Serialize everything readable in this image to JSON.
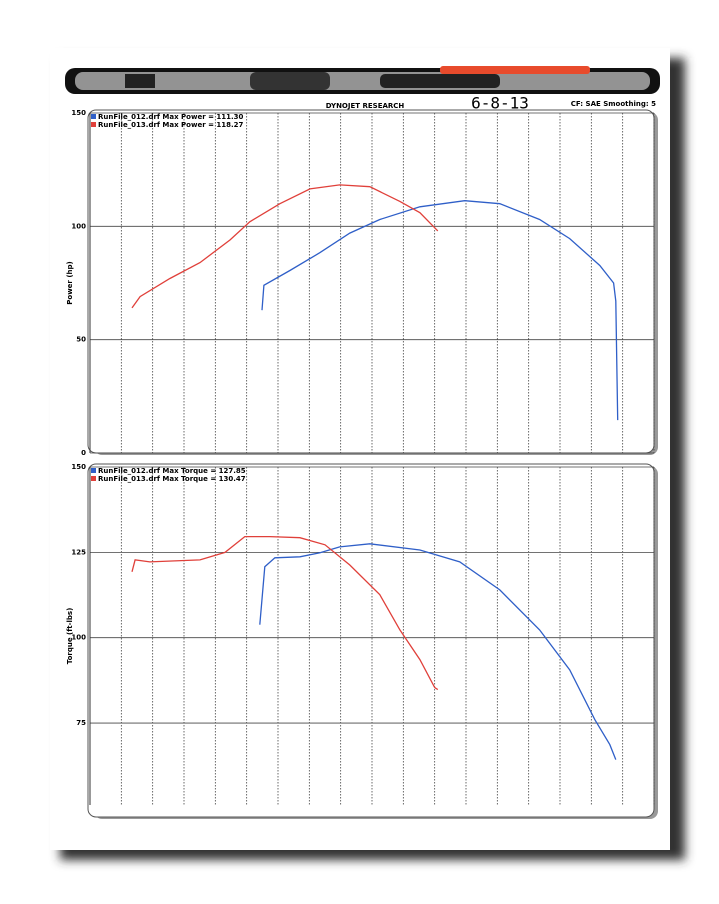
{
  "header": {
    "company": "DYNOJET RESEARCH",
    "date": "6-8-13",
    "settings": "CF: SAE  Smoothing: 5"
  },
  "chart_data": [
    {
      "type": "line",
      "y_label": "Power (hp)",
      "xlim": [
        0,
        18
      ],
      "ylim": [
        0,
        150
      ],
      "yticks": [
        0,
        50,
        100,
        150
      ],
      "grid": true,
      "series": [
        {
          "name": "RunFile_012.drf Max Power = 111.30",
          "color": "#2f5fc8",
          "x": [
            5.49,
            5.55,
            6.38,
            7.34,
            8.29,
            9.25,
            10.53,
            11.96,
            13.08,
            14.35,
            15.31,
            16.27,
            16.71,
            16.78,
            16.84
          ],
          "values": [
            63,
            74,
            80.5,
            88.4,
            97,
            103,
            108.6,
            111.3,
            110,
            103,
            94.6,
            82.7,
            75,
            67,
            14.5
          ]
        },
        {
          "name": "RunFile_013.drf Max Power = 118.27",
          "color": "#e0403a",
          "x": [
            1.34,
            1.6,
            2.55,
            3.51,
            4.47,
            5.1,
            6.06,
            7.02,
            7.97,
            8.93,
            9.89,
            10.53,
            11.1
          ],
          "values": [
            64,
            69,
            77,
            84,
            94,
            102,
            110,
            116.5,
            118.3,
            117.5,
            111,
            106,
            98
          ]
        }
      ]
    },
    {
      "type": "line",
      "y_label": "Torque (ft-lbs)",
      "xlim": [
        0,
        18
      ],
      "ylim": [
        51,
        150
      ],
      "yticks": [
        75,
        100,
        125,
        150
      ],
      "grid": true,
      "series": [
        {
          "name": "RunFile_012.drf Max Torque = 127.85",
          "color": "#2f5fc8",
          "x": [
            5.42,
            5.58,
            5.9,
            6.7,
            7.34,
            7.97,
            8.93,
            10.53,
            11.8,
            13.08,
            14.35,
            15.31,
            16.11,
            16.59,
            16.78
          ],
          "values": [
            103.8,
            120.8,
            123.4,
            123.7,
            124.9,
            126.6,
            127.5,
            125.7,
            122.2,
            114,
            102.3,
            90.6,
            76,
            68.7,
            64.3
          ]
        },
        {
          "name": "RunFile_013.drf Max Torque = 130.47",
          "color": "#e0403a",
          "x": [
            1.34,
            1.44,
            1.91,
            3.51,
            4.31,
            4.94,
            5.74,
            6.7,
            7.5,
            8.29,
            9.25,
            9.89,
            10.53,
            11.0,
            11.1
          ],
          "values": [
            119.3,
            122.8,
            122.2,
            122.8,
            125,
            129.6,
            129.6,
            129.3,
            127.2,
            121.3,
            112.6,
            102.3,
            93.6,
            85.4,
            84.8
          ]
        }
      ]
    }
  ]
}
